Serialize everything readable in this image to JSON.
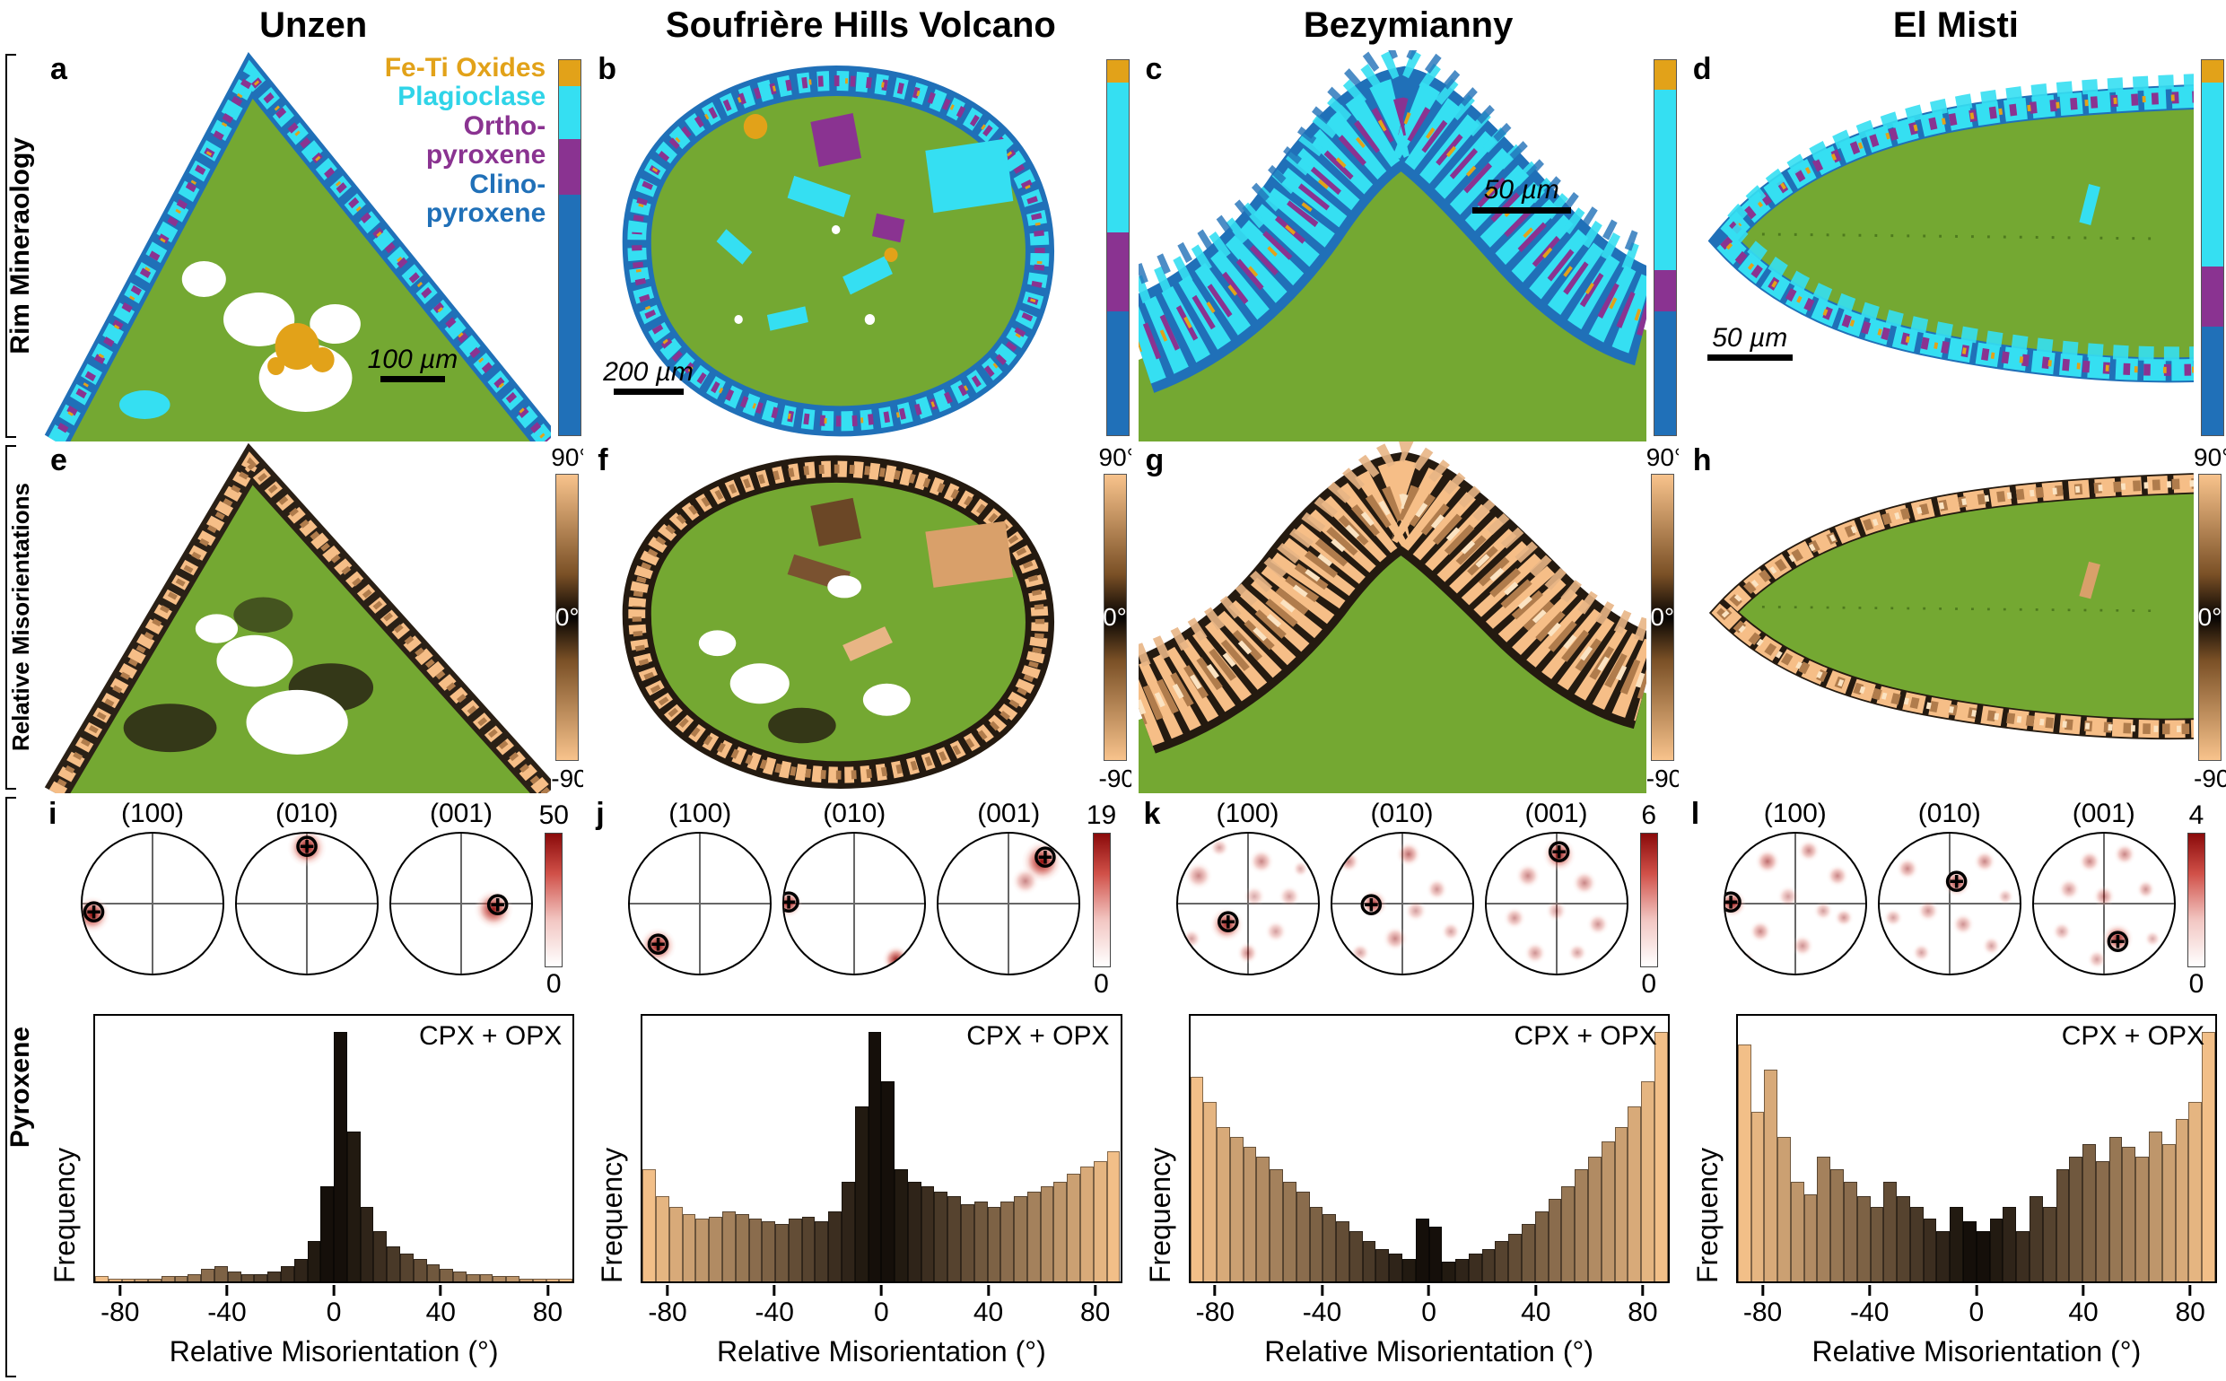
{
  "colors": {
    "feti_oxides": "#E2A219",
    "plagioclase": "#35DFF2",
    "orthopyroxene": "#8A3391",
    "clinopyroxene": "#2070B8",
    "crystal_interior": "#74A832",
    "misorientation_extreme": "#F8C38C",
    "misorientation_zero": "#060402",
    "pole_max": "#8A0A0A",
    "pole_min": "#FFFFFF"
  },
  "row_labels": {
    "mineralogy": "Rim Mineraology",
    "misorientations": "Relative Misorientations",
    "pyroxene": "Pyroxene"
  },
  "legend": {
    "feti": "Fe-Ti Oxides",
    "plagioclase": "Plagioclase",
    "ortho1": "Ortho-",
    "ortho2": "pyroxene",
    "clino1": "Clino-",
    "clino2": "pyroxene"
  },
  "misorientation_colorbar": {
    "top": "90°",
    "mid": "0°",
    "bottom": "-90°"
  },
  "histogram_axis": {
    "ylabel": "Frequency",
    "xlabel": "Relative Misorientation (°)",
    "annotation": "CPX + OPX",
    "xticks": [
      "-80",
      "-40",
      "0",
      "40",
      "80"
    ]
  },
  "columns": [
    {
      "title": "Unzen",
      "mineral_panel": {
        "letter": "a",
        "scale_bar": "100 µm",
        "phase_fractions": {
          "oxides": 0.07,
          "plagioclase": 0.14,
          "orthopyroxene": 0.15,
          "clinopyroxene": 0.64
        }
      },
      "misorientation_panel": {
        "letter": "e"
      },
      "pole_panel": {
        "letter": "i",
        "scale_max": "50",
        "scale_min": "0",
        "planes": [
          "(100)",
          "(010)",
          "(001)"
        ]
      }
    },
    {
      "title": "Soufrière Hills Volcano",
      "mineral_panel": {
        "letter": "b",
        "scale_bar": "200 µm",
        "phase_fractions": {
          "oxides": 0.06,
          "plagioclase": 0.4,
          "orthopyroxene": 0.21,
          "clinopyroxene": 0.33
        }
      },
      "misorientation_panel": {
        "letter": "f"
      },
      "pole_panel": {
        "letter": "j",
        "scale_max": "19",
        "scale_min": "0",
        "planes": [
          "(100)",
          "(010)",
          "(001)"
        ]
      }
    },
    {
      "title": "Bezymianny",
      "mineral_panel": {
        "letter": "c",
        "scale_bar": "50 µm",
        "phase_fractions": {
          "oxides": 0.08,
          "plagioclase": 0.48,
          "orthopyroxene": 0.11,
          "clinopyroxene": 0.33
        }
      },
      "misorientation_panel": {
        "letter": "g"
      },
      "pole_panel": {
        "letter": "k",
        "scale_max": "6",
        "scale_min": "0",
        "planes": [
          "(100)",
          "(010)",
          "(001)"
        ]
      }
    },
    {
      "title": "El Misti",
      "mineral_panel": {
        "letter": "d",
        "scale_bar": "50 µm",
        "phase_fractions": {
          "oxides": 0.06,
          "plagioclase": 0.49,
          "orthopyroxene": 0.16,
          "clinopyroxene": 0.29
        }
      },
      "misorientation_panel": {
        "letter": "h"
      },
      "pole_panel": {
        "letter": "l",
        "scale_max": "4",
        "scale_min": "0",
        "planes": [
          "(100)",
          "(010)",
          "(001)"
        ]
      }
    }
  ],
  "chart_data": [
    {
      "type": "bar",
      "volcano": "Unzen",
      "title": "CPX + OPX",
      "xlabel": "Relative Misorientation (°)",
      "ylabel": "Frequency",
      "x_start": -90,
      "bin_width": 5,
      "xlim": [
        -90,
        90
      ],
      "values": [
        2,
        1,
        1,
        1,
        1,
        2,
        2,
        3,
        5,
        6,
        4,
        3,
        3,
        4,
        6,
        9,
        16,
        38,
        100,
        60,
        30,
        20,
        14,
        11,
        9,
        7,
        5,
        4,
        3,
        3,
        2,
        2,
        1,
        1,
        1,
        1
      ]
    },
    {
      "type": "bar",
      "volcano": "Soufrière Hills Volcano",
      "title": "CPX + OPX",
      "xlabel": "Relative Misorientation (°)",
      "ylabel": "Frequency",
      "x_start": -90,
      "bin_width": 5,
      "xlim": [
        -90,
        90
      ],
      "values": [
        45,
        34,
        30,
        27,
        25,
        26,
        28,
        27,
        25,
        24,
        23,
        25,
        26,
        24,
        28,
        40,
        70,
        100,
        80,
        45,
        40,
        38,
        36,
        34,
        31,
        32,
        30,
        32,
        34,
        36,
        38,
        40,
        43,
        46,
        48,
        52
      ]
    },
    {
      "type": "bar",
      "volcano": "Bezymianny",
      "title": "CPX + OPX",
      "xlabel": "Relative Misorientation (°)",
      "ylabel": "Frequency",
      "x_start": -90,
      "bin_width": 5,
      "xlim": [
        -90,
        90
      ],
      "values": [
        82,
        72,
        62,
        58,
        54,
        50,
        45,
        40,
        36,
        30,
        27,
        24,
        20,
        16,
        13,
        11,
        9,
        25,
        22,
        8,
        9,
        11,
        13,
        16,
        19,
        23,
        28,
        33,
        38,
        45,
        50,
        56,
        62,
        70,
        80,
        100
      ]
    },
    {
      "type": "bar",
      "volcano": "El Misti",
      "title": "CPX + OPX",
      "xlabel": "Relative Misorientation (°)",
      "ylabel": "Frequency",
      "x_start": -90,
      "bin_width": 5,
      "xlim": [
        -90,
        90
      ],
      "values": [
        95,
        68,
        85,
        58,
        40,
        35,
        50,
        45,
        40,
        34,
        30,
        40,
        34,
        30,
        25,
        20,
        30,
        24,
        20,
        25,
        30,
        20,
        34,
        30,
        45,
        50,
        55,
        48,
        58,
        54,
        50,
        60,
        55,
        65,
        72,
        100
      ]
    },
    {
      "type": "pole_figures",
      "volcano": "Unzen",
      "planes": [
        "(100)",
        "(010)",
        "(001)"
      ],
      "scale_max": 50,
      "scale_min": 0,
      "hotspots": {
        "(100)": [
          [
            0.07,
            0.58,
            0.13,
            1.0
          ]
        ],
        "(010)": [
          [
            0.5,
            0.1,
            0.14,
            1.0
          ]
        ],
        "(001)": [
          [
            0.73,
            0.54,
            0.14,
            0.95
          ]
        ]
      },
      "markers": {
        "(100)": [
          0.08,
          0.57
        ],
        "(010)": [
          0.5,
          0.1
        ],
        "(001)": [
          0.76,
          0.52
        ]
      }
    },
    {
      "type": "pole_figures",
      "volcano": "Soufrière Hills Volcano",
      "planes": [
        "(100)",
        "(010)",
        "(001)"
      ],
      "scale_max": 19,
      "scale_min": 0,
      "hotspots": {
        "(100)": [
          [
            0.2,
            0.8,
            0.13,
            1.0
          ]
        ],
        "(010)": [
          [
            0.03,
            0.5,
            0.1,
            0.9
          ],
          [
            0.8,
            0.9,
            0.1,
            0.9
          ]
        ],
        "(001)": [
          [
            0.74,
            0.2,
            0.15,
            1.0
          ],
          [
            0.62,
            0.34,
            0.1,
            0.5
          ]
        ]
      },
      "markers": {
        "(100)": [
          0.2,
          0.8
        ],
        "(010)": [
          0.03,
          0.5
        ],
        "(001)": [
          0.76,
          0.18
        ]
      }
    },
    {
      "type": "pole_figures",
      "volcano": "Bezymianny",
      "planes": [
        "(100)",
        "(010)",
        "(001)"
      ],
      "scale_max": 6,
      "scale_min": 0,
      "hotspots": {
        "(100)": [
          [
            0.35,
            0.65,
            0.12,
            0.9
          ],
          [
            0.15,
            0.3,
            0.1,
            0.5
          ],
          [
            0.6,
            0.2,
            0.09,
            0.5
          ],
          [
            0.8,
            0.45,
            0.08,
            0.4
          ],
          [
            0.5,
            0.85,
            0.08,
            0.5
          ],
          [
            0.1,
            0.75,
            0.07,
            0.4
          ],
          [
            0.7,
            0.7,
            0.08,
            0.4
          ],
          [
            0.3,
            0.1,
            0.07,
            0.4
          ],
          [
            0.88,
            0.25,
            0.06,
            0.35
          ],
          [
            0.55,
            0.45,
            0.08,
            0.35
          ]
        ],
        "(010)": [
          [
            0.3,
            0.5,
            0.1,
            0.8
          ],
          [
            0.12,
            0.2,
            0.08,
            0.5
          ],
          [
            0.55,
            0.15,
            0.09,
            0.6
          ],
          [
            0.75,
            0.4,
            0.08,
            0.45
          ],
          [
            0.45,
            0.75,
            0.09,
            0.5
          ],
          [
            0.85,
            0.7,
            0.07,
            0.4
          ],
          [
            0.2,
            0.85,
            0.07,
            0.4
          ],
          [
            0.6,
            0.55,
            0.08,
            0.4
          ]
        ],
        "(001)": [
          [
            0.52,
            0.15,
            0.12,
            0.9
          ],
          [
            0.3,
            0.3,
            0.09,
            0.5
          ],
          [
            0.7,
            0.35,
            0.09,
            0.5
          ],
          [
            0.2,
            0.6,
            0.08,
            0.45
          ],
          [
            0.5,
            0.55,
            0.08,
            0.4
          ],
          [
            0.8,
            0.65,
            0.08,
            0.45
          ],
          [
            0.35,
            0.85,
            0.08,
            0.45
          ],
          [
            0.65,
            0.85,
            0.07,
            0.4
          ]
        ]
      },
      "markers": {
        "(100)": [
          0.36,
          0.64
        ],
        "(010)": [
          0.28,
          0.52
        ],
        "(001)": [
          0.52,
          0.14
        ]
      }
    },
    {
      "type": "pole_figures",
      "volcano": "El Misti",
      "planes": [
        "(100)",
        "(010)",
        "(001)"
      ],
      "scale_max": 4,
      "scale_min": 0,
      "hotspots": {
        "(100)": [
          [
            0.05,
            0.5,
            0.1,
            0.9
          ],
          [
            0.3,
            0.2,
            0.09,
            0.6
          ],
          [
            0.6,
            0.12,
            0.08,
            0.5
          ],
          [
            0.8,
            0.3,
            0.08,
            0.5
          ],
          [
            0.45,
            0.45,
            0.08,
            0.4
          ],
          [
            0.25,
            0.7,
            0.08,
            0.5
          ],
          [
            0.55,
            0.8,
            0.08,
            0.45
          ],
          [
            0.85,
            0.6,
            0.07,
            0.45
          ],
          [
            0.7,
            0.55,
            0.07,
            0.4
          ],
          [
            0.15,
            0.9,
            0.06,
            0.35
          ]
        ],
        "(010)": [
          [
            0.55,
            0.35,
            0.1,
            0.8
          ],
          [
            0.2,
            0.25,
            0.08,
            0.5
          ],
          [
            0.75,
            0.2,
            0.08,
            0.5
          ],
          [
            0.35,
            0.55,
            0.08,
            0.45
          ],
          [
            0.1,
            0.6,
            0.07,
            0.4
          ],
          [
            0.6,
            0.65,
            0.08,
            0.45
          ],
          [
            0.8,
            0.8,
            0.07,
            0.4
          ],
          [
            0.3,
            0.85,
            0.07,
            0.4
          ],
          [
            0.9,
            0.45,
            0.06,
            0.35
          ]
        ],
        "(001)": [
          [
            0.6,
            0.75,
            0.11,
            0.9
          ],
          [
            0.4,
            0.2,
            0.08,
            0.5
          ],
          [
            0.65,
            0.15,
            0.08,
            0.5
          ],
          [
            0.25,
            0.4,
            0.08,
            0.45
          ],
          [
            0.5,
            0.45,
            0.08,
            0.5
          ],
          [
            0.8,
            0.4,
            0.07,
            0.45
          ],
          [
            0.2,
            0.7,
            0.07,
            0.4
          ],
          [
            0.45,
            0.9,
            0.07,
            0.4
          ],
          [
            0.85,
            0.75,
            0.06,
            0.35
          ]
        ]
      },
      "markers": {
        "(100)": [
          0.04,
          0.5
        ],
        "(010)": [
          0.55,
          0.35
        ],
        "(001)": [
          0.6,
          0.78
        ]
      }
    }
  ]
}
